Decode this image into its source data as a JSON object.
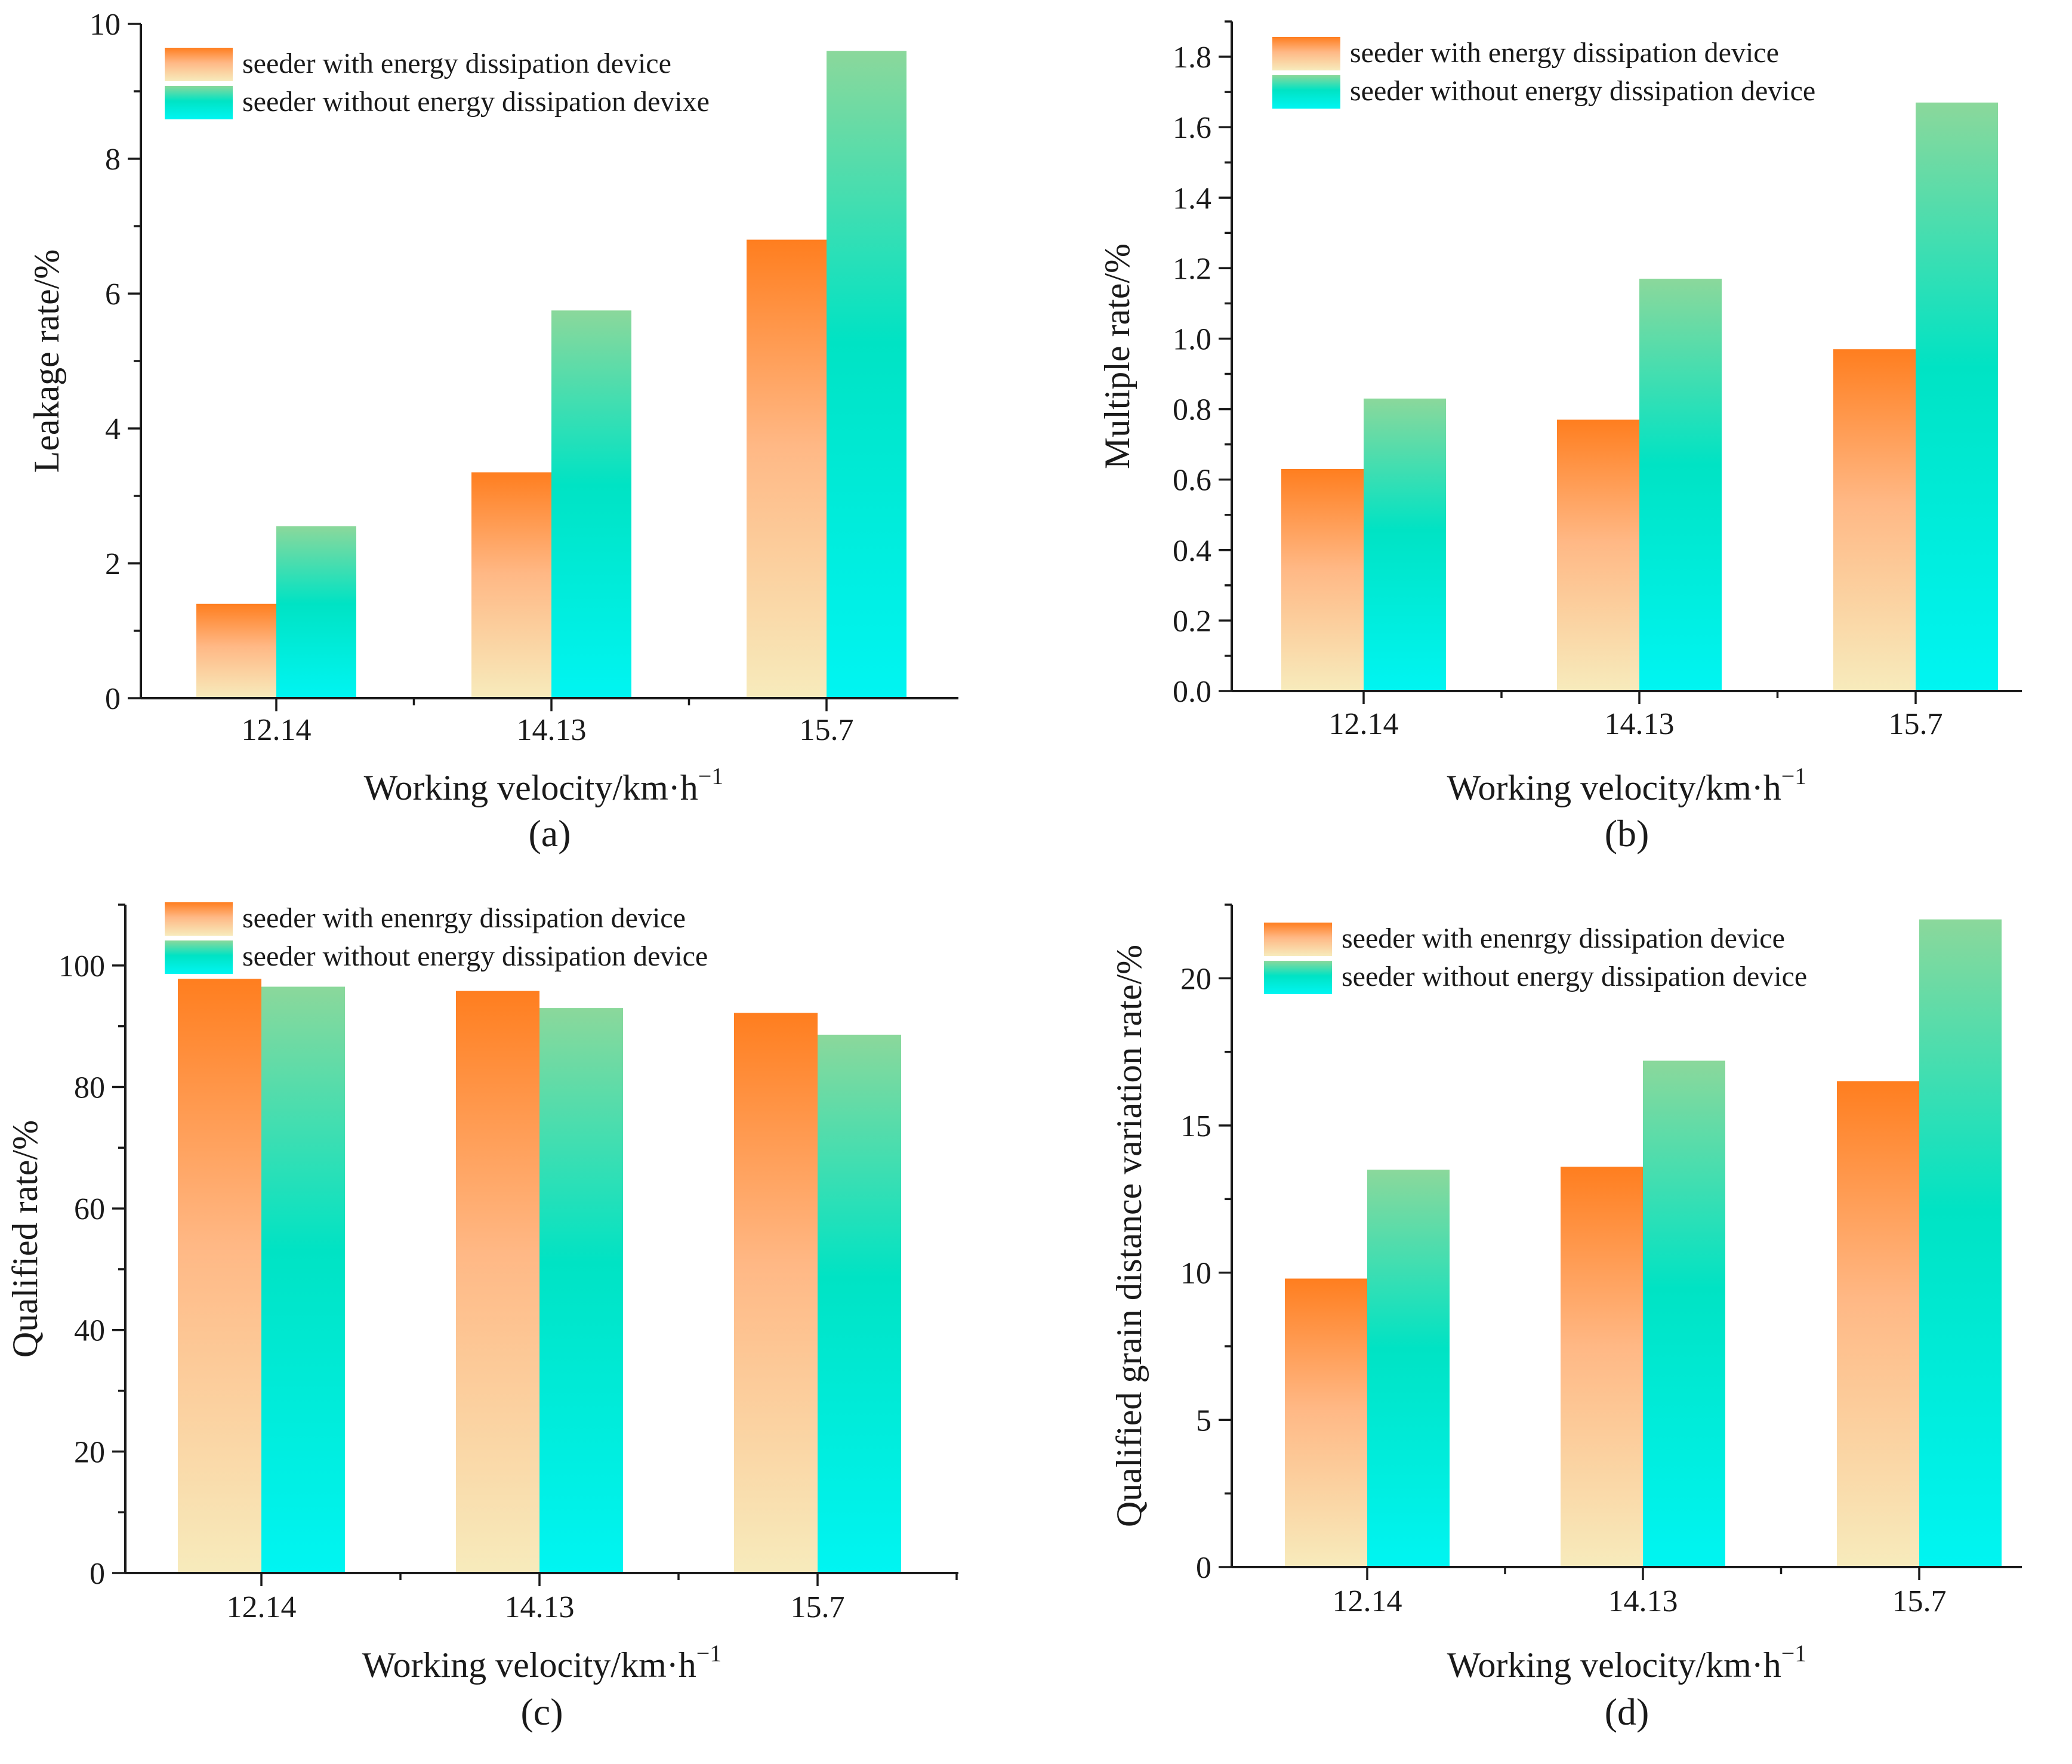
{
  "chart_data": [
    {
      "panel": "(a)",
      "type": "bar",
      "categories": [
        "12.14",
        "14.13",
        "15.7"
      ],
      "series": [
        {
          "name": "seeder with energy dissipation device",
          "values": [
            1.4,
            3.35,
            6.8
          ]
        },
        {
          "name": "seeder without energy dissipation devixe",
          "values": [
            2.55,
            5.75,
            9.6
          ]
        }
      ],
      "ylabel": "Leakage rate/%",
      "xlabel": "Working velocity/km·h",
      "xlabel_sup": "−1",
      "ylim": [
        0,
        10
      ],
      "yticks": [
        "0",
        "2",
        "4",
        "6",
        "8",
        "10"
      ],
      "yticks_values": [
        0,
        2,
        4,
        6,
        8,
        10
      ],
      "minor_step": 1
    },
    {
      "panel": "(b)",
      "type": "bar",
      "categories": [
        "12.14",
        "14.13",
        "15.7"
      ],
      "series": [
        {
          "name": "seeder with energy dissipation device",
          "values": [
            0.63,
            0.77,
            0.97
          ]
        },
        {
          "name": "seeder without energy dissipation device",
          "values": [
            0.83,
            1.17,
            1.67
          ]
        }
      ],
      "ylabel": "Multiple rate/%",
      "xlabel": "Working velocity/km·h",
      "xlabel_sup": "−1",
      "ylim": [
        0,
        1.9
      ],
      "yticks": [
        "0.0",
        "0.2",
        "0.4",
        "0.6",
        "0.8",
        "1.0",
        "1.2",
        "1.4",
        "1.6",
        "1.8"
      ],
      "yticks_values": [
        0,
        0.2,
        0.4,
        0.6,
        0.8,
        1.0,
        1.2,
        1.4,
        1.6,
        1.8
      ],
      "minor_step": 0.1
    },
    {
      "panel": "(c)",
      "type": "bar",
      "categories": [
        "12.14",
        "14.13",
        "15.7"
      ],
      "series": [
        {
          "name": "seeder with enenrgy dissipation device",
          "values": [
            97.8,
            95.8,
            92.2
          ]
        },
        {
          "name": "seeder without energy dissipation device",
          "values": [
            96.5,
            93.0,
            88.6
          ]
        }
      ],
      "ylabel": "Qualified rate/%",
      "xlabel": "Working velocity/km·h",
      "xlabel_sup": "−1",
      "ylim": [
        0,
        110
      ],
      "yticks": [
        "0",
        "20",
        "40",
        "60",
        "80",
        "100"
      ],
      "yticks_values": [
        0,
        20,
        40,
        60,
        80,
        100
      ],
      "minor_step": 10
    },
    {
      "panel": "(d)",
      "type": "bar",
      "categories": [
        "12.14",
        "14.13",
        "15.7"
      ],
      "series": [
        {
          "name": "seeder with enenrgy dissipation device",
          "values": [
            9.8,
            13.6,
            16.5
          ]
        },
        {
          "name": "seeder without energy dissipation device",
          "values": [
            13.5,
            17.2,
            22.0
          ]
        }
      ],
      "ylabel": "Qualified grain distance variation rate/%",
      "xlabel": "Working velocity/km·h",
      "xlabel_sup": "−1",
      "ylim": [
        0,
        22.5
      ],
      "yticks": [
        "0",
        "5",
        "10",
        "15",
        "20"
      ],
      "yticks_values": [
        0,
        5,
        10,
        15,
        20
      ],
      "minor_step": 2.5
    }
  ],
  "colors": {
    "series1_top": "#ff7e1f",
    "series1_mid": "#ffb885",
    "series1_bottom": "#f7ebbc",
    "series2_top": "#8bd89b",
    "series2_mid": "#00e3c4",
    "series2_bottom": "#00f5f2",
    "axis": "#1a1a1a"
  }
}
